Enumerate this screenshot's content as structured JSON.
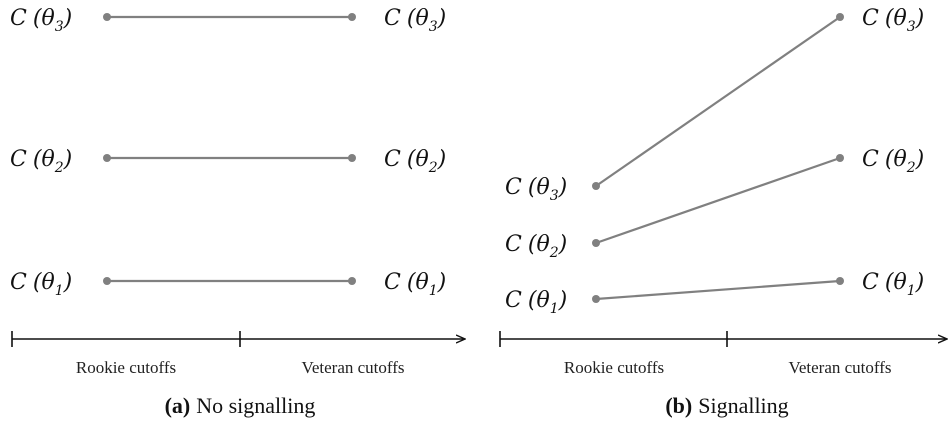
{
  "panels": [
    {
      "caption_tag": "(a)",
      "caption_text": "No signalling",
      "axis_left_label": "Rookie cutoffs",
      "axis_right_label": "Veteran cutoffs",
      "rows": [
        {
          "left": "C (θ3)",
          "right": "C (θ3)",
          "sub": "3"
        },
        {
          "left": "C (θ2)",
          "right": "C (θ2)",
          "sub": "2"
        },
        {
          "left": "C (θ1)",
          "right": "C (θ1)",
          "sub": "1"
        }
      ]
    },
    {
      "caption_tag": "(b)",
      "caption_text": "Signalling",
      "axis_left_label": "Rookie cutoffs",
      "axis_right_label": "Veteran cutoffs",
      "rows": [
        {
          "left": "C (θ3)",
          "right": "C (θ3)",
          "sub": "3"
        },
        {
          "left": "C (θ2)",
          "right": "C (θ2)",
          "sub": "2"
        },
        {
          "left": "C (θ1)",
          "right": "C (θ1)",
          "sub": "1"
        }
      ]
    }
  ]
}
